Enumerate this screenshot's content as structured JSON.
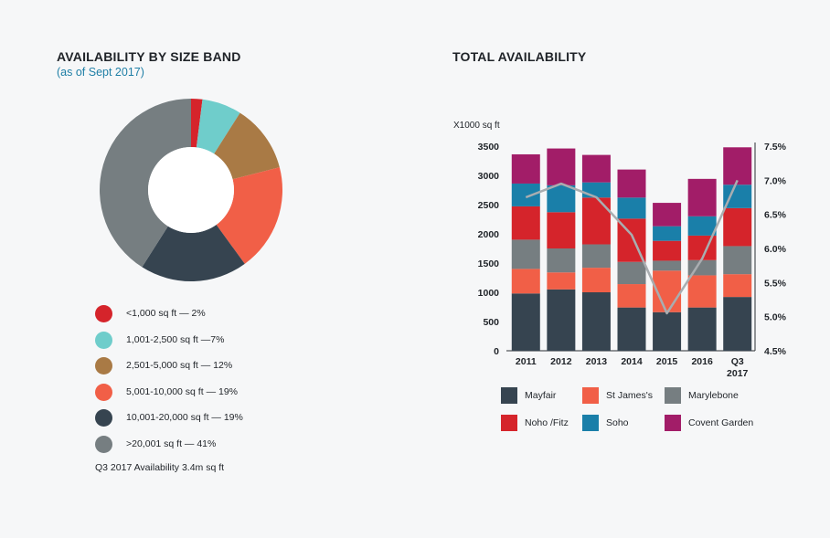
{
  "left": {
    "title": "AVAILABILITY BY SIZE BAND",
    "subtitle": "(as of Sept 2017)",
    "footnote": "Q3 2017 Availability 3.4m sq ft"
  },
  "right": {
    "title": "TOTAL AVAILABILITY"
  },
  "chart_data": [
    {
      "type": "pie",
      "variant": "donut",
      "title": "AVAILABILITY BY SIZE BAND",
      "subtitle": "(as of Sept 2017)",
      "slices": [
        {
          "label": "<1,000 sq ft — 2%",
          "value": 2,
          "color": "#d5242b"
        },
        {
          "label": "1,001-2,500 sq ft —7%",
          "value": 7,
          "color": "#6fcdcb"
        },
        {
          "label": "2,501-5,000 sq ft — 12%",
          "value": 12,
          "color": "#a97a45"
        },
        {
          "label": "5,001-10,000 sq ft — 19%",
          "value": 19,
          "color": "#f15f47"
        },
        {
          "label": "10,001-20,000 sq ft — 19%",
          "value": 19,
          "color": "#364450"
        },
        {
          "label": ">20,001 sq ft — 41%",
          "value": 41,
          "color": "#767e81"
        }
      ]
    },
    {
      "type": "bar",
      "stacked": true,
      "title": "TOTAL AVAILABILITY",
      "ylabel": "X1000 sq ft",
      "categories": [
        "2011",
        "2012",
        "2013",
        "2014",
        "2015",
        "2016",
        "Q3 2017"
      ],
      "ylim": [
        0,
        3500
      ],
      "yticks": [
        "0",
        "500",
        "1000",
        "1500",
        "2000",
        "2500",
        "3000",
        "3500"
      ],
      "y2lim": [
        4.5,
        7.5
      ],
      "y2ticks": [
        "4.5%",
        "5.0%",
        "5.5%",
        "6.0%",
        "6.5%",
        "7.0%",
        "7.5%"
      ],
      "series": [
        {
          "name": "Mayfair",
          "color": "#364450",
          "values": [
            980,
            1050,
            1000,
            740,
            660,
            740,
            920
          ]
        },
        {
          "name": "St James's",
          "color": "#f15f47",
          "values": [
            420,
            290,
            420,
            400,
            710,
            550,
            390
          ]
        },
        {
          "name": "Marylebone",
          "color": "#767e81",
          "values": [
            500,
            410,
            400,
            380,
            170,
            260,
            480
          ]
        },
        {
          "name": "Noho /Fitz",
          "color": "#d5242b",
          "values": [
            570,
            620,
            800,
            740,
            340,
            420,
            650
          ]
        },
        {
          "name": "Soho",
          "color": "#1a7fa9",
          "values": [
            390,
            460,
            260,
            360,
            250,
            330,
            400
          ]
        },
        {
          "name": "Covent Garden",
          "color": "#a21d68",
          "values": [
            500,
            630,
            470,
            480,
            400,
            640,
            640
          ]
        }
      ],
      "line": {
        "name": "Vacancy rate",
        "axis": "right",
        "color": "#a9adb0",
        "values": [
          6.75,
          6.95,
          6.75,
          6.2,
          5.05,
          5.85,
          7.0
        ]
      }
    }
  ]
}
